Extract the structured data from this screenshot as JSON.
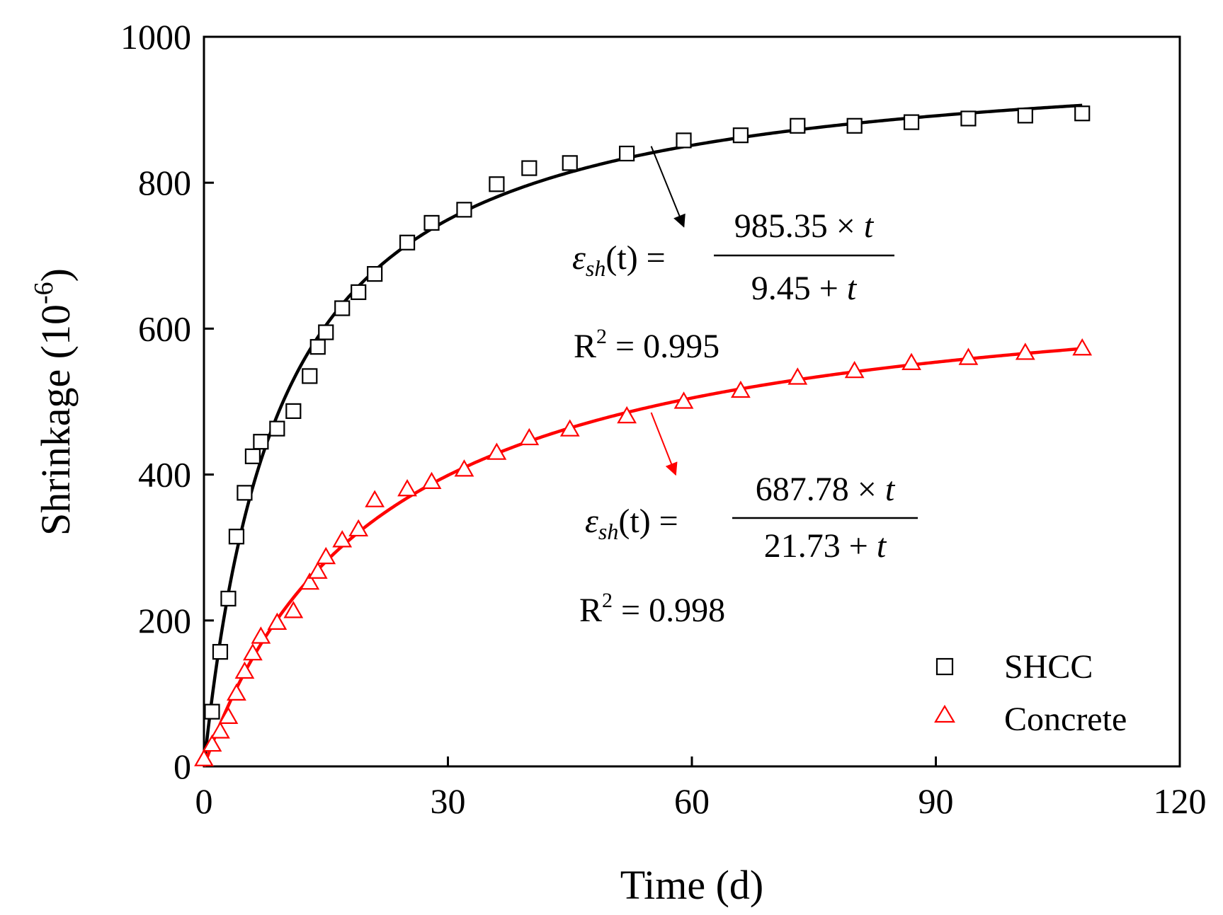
{
  "chart_data": {
    "type": "scatter",
    "title": "",
    "xlabel": "Time (d)",
    "ylabel_main": "Shrinkage (10",
    "ylabel_exp": "-6",
    "ylabel_close": ")",
    "xlim": [
      0,
      120
    ],
    "ylim": [
      0,
      1000
    ],
    "xticks": [
      0,
      30,
      60,
      90,
      120
    ],
    "yticks": [
      0,
      200,
      400,
      600,
      800,
      1000
    ],
    "xtick_labels": [
      "0",
      "30",
      "60",
      "90",
      "120"
    ],
    "ytick_labels": [
      "0",
      "200",
      "400",
      "600",
      "800",
      "1000"
    ],
    "legend_position": "bottom-right",
    "series": [
      {
        "name": "SHCC",
        "marker": "square",
        "color": "#000000",
        "x": [
          1,
          2,
          3,
          4,
          5,
          6,
          7,
          9,
          11,
          13,
          14,
          15,
          17,
          19,
          21,
          25,
          28,
          32,
          36,
          40,
          45,
          52,
          59,
          66,
          73,
          80,
          87,
          94,
          101,
          108
        ],
        "y": [
          75,
          157,
          230,
          315,
          375,
          425,
          445,
          463,
          487,
          535,
          575,
          595,
          628,
          650,
          675,
          718,
          745,
          763,
          798,
          820,
          827,
          840,
          858,
          865,
          878,
          878,
          883,
          888,
          892,
          895
        ],
        "fit": {
          "a": 985.35,
          "b": 9.45,
          "t_max": 108
        }
      },
      {
        "name": "Concrete",
        "marker": "triangle",
        "color": "#ff0000",
        "x": [
          0,
          1,
          2,
          3,
          4,
          5,
          6,
          7,
          9,
          11,
          13,
          14,
          15,
          17,
          19,
          21,
          25,
          28,
          32,
          36,
          40,
          45,
          52,
          59,
          66,
          73,
          80,
          87,
          94,
          101,
          108
        ],
        "y": [
          10,
          30,
          48,
          68,
          100,
          130,
          155,
          178,
          197,
          213,
          252,
          267,
          287,
          310,
          325,
          365,
          380,
          390,
          407,
          430,
          450,
          462,
          480,
          500,
          515,
          533,
          542,
          553,
          560,
          567,
          573
        ],
        "fit": {
          "a": 687.78,
          "b": 21.73,
          "t_max": 108
        }
      }
    ],
    "annotations": [
      {
        "series": "SHCC",
        "eq_lhs_var": "ε",
        "eq_lhs_sub": "sh",
        "eq_lhs_arg": "(t) =",
        "eq_numerator_num": "985.35 × ",
        "eq_numerator_var": "t",
        "eq_denominator_num": "9.45 + ",
        "eq_denominator_var": "t",
        "r2_label": "R",
        "r2_sup": "2",
        "r2_value": " = 0.995",
        "arrow_from": [
          55,
          850
        ],
        "arrow_to": [
          59,
          740
        ]
      },
      {
        "series": "Concrete",
        "eq_lhs_var": "ε",
        "eq_lhs_sub": "sh",
        "eq_lhs_arg": "(t) =",
        "eq_numerator_num": "687.78 × ",
        "eq_numerator_var": "t",
        "eq_denominator_num": "21.73 + ",
        "eq_denominator_var": "t",
        "r2_label": "R",
        "r2_sup": "2",
        "r2_value": " = 0.998",
        "arrow_from": [
          55,
          485
        ],
        "arrow_to": [
          58,
          400
        ]
      }
    ]
  }
}
